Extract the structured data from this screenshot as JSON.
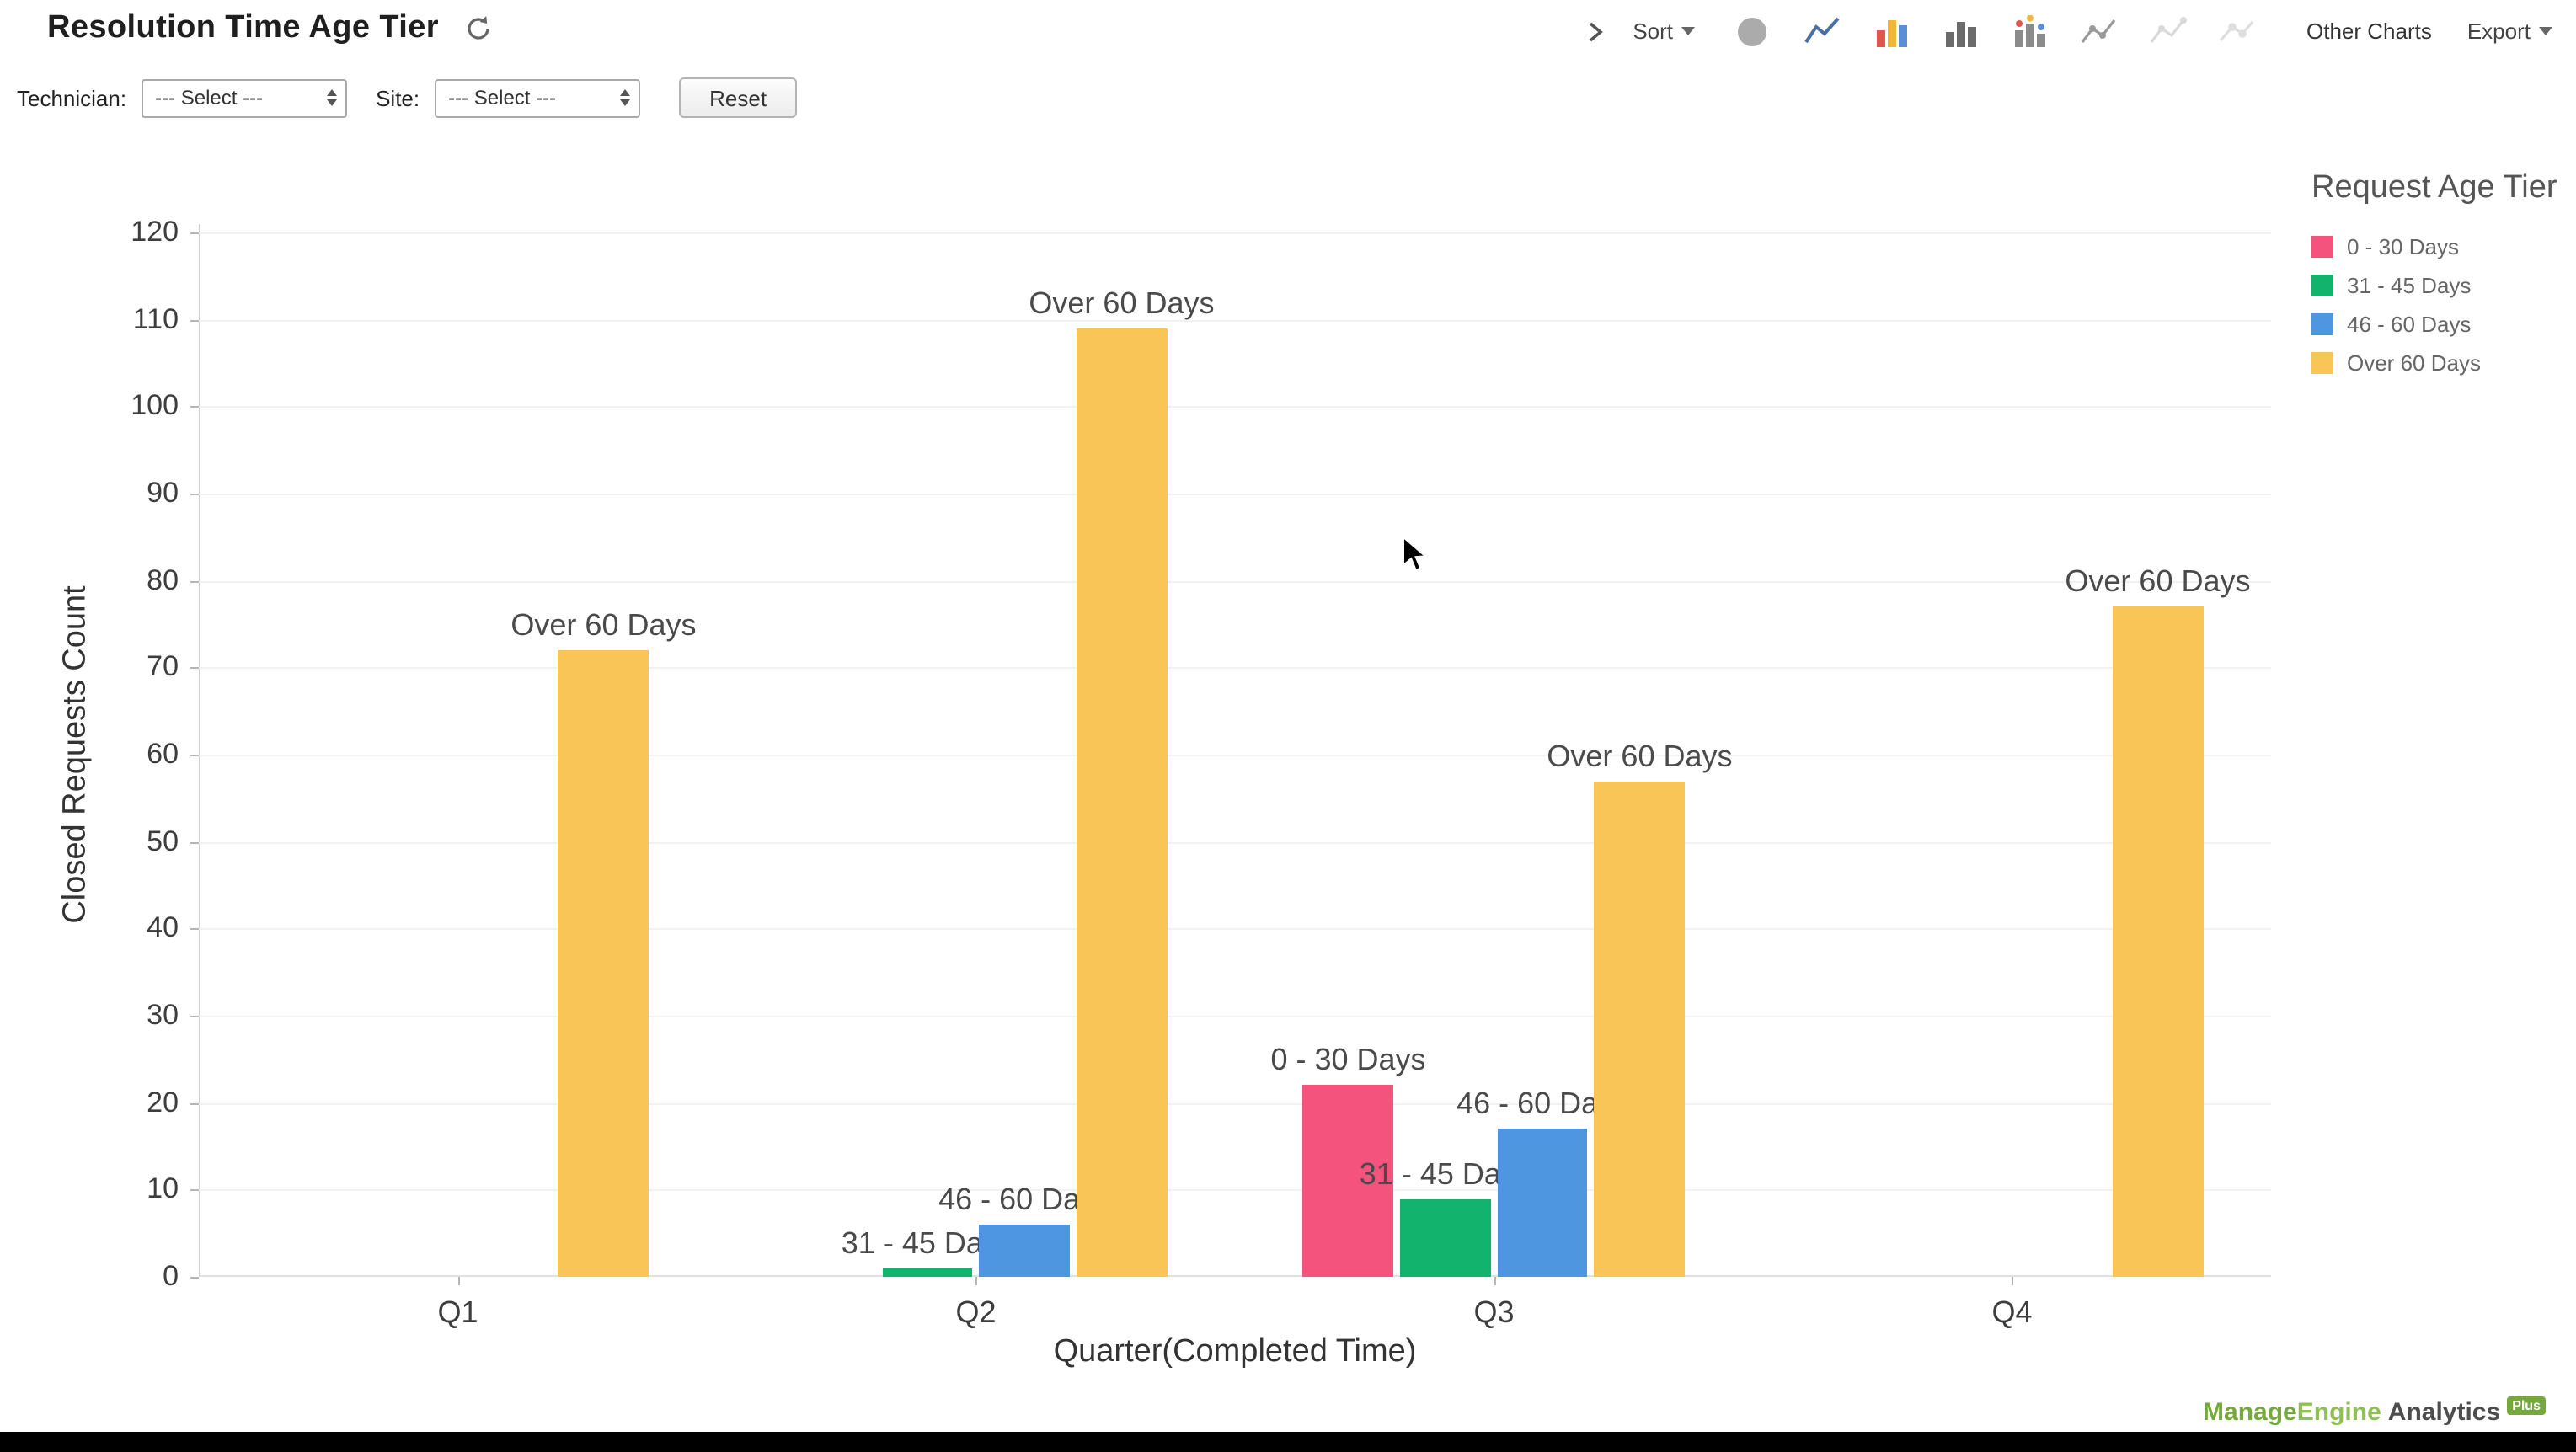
{
  "header": {
    "title": "Resolution Time Age Tier",
    "sort_label": "Sort",
    "other_charts_label": "Other Charts",
    "export_label": "Export"
  },
  "toolbar_icons": [
    "pie-chart-icon",
    "line-chart-icon",
    "bar-chart-icon",
    "column-chart-icon",
    "stacked-chart-icon",
    "scatter-chart-icon",
    "area-chart-icon",
    "bubble-chart-icon"
  ],
  "filters": {
    "technician_label": "Technician:",
    "technician_value": "--- Select ---",
    "site_label": "Site:",
    "site_value": "--- Select ---",
    "reset_label": "Reset"
  },
  "legend": {
    "title": "Request Age Tier"
  },
  "chart_data": {
    "type": "bar",
    "title": "Resolution Time Age Tier",
    "xlabel": "Quarter(Completed Time)",
    "ylabel": "Closed Requests Count",
    "ylim": [
      0,
      120
    ],
    "ytick_step": 10,
    "grid": true,
    "legend_position": "right",
    "categories": [
      "Q1",
      "Q2",
      "Q3",
      "Q4"
    ],
    "series": [
      {
        "name": "0 - 30 Days",
        "color": "#F4537E",
        "values": [
          null,
          null,
          22,
          null
        ]
      },
      {
        "name": "31 - 45 Days",
        "color": "#12B36C",
        "values": [
          null,
          1,
          9,
          null
        ]
      },
      {
        "name": "46 - 60 Days",
        "color": "#4E96E0",
        "values": [
          null,
          6,
          17,
          null
        ]
      },
      {
        "name": "Over 60 Days",
        "color": "#F8C556",
        "values": [
          72,
          109,
          57,
          77
        ]
      }
    ]
  },
  "footer": {
    "brand_bold": "Manage",
    "brand_rest": "Engine",
    "product": "Analytics",
    "plus": "Plus"
  }
}
